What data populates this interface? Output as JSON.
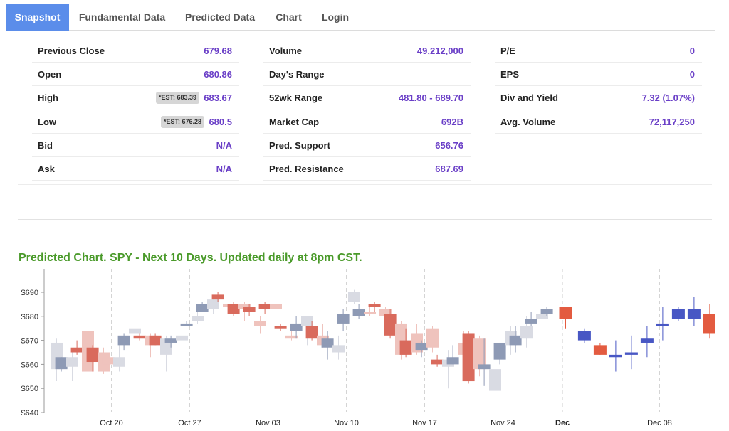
{
  "tabs": [
    {
      "label": "Snapshot",
      "active": true
    },
    {
      "label": "Fundamental Data",
      "active": false
    },
    {
      "label": "Predicted Data",
      "active": false
    },
    {
      "label": "Chart",
      "active": false
    },
    {
      "label": "Login",
      "active": false
    }
  ],
  "quote": {
    "previous_close": {
      "label": "Previous Close",
      "value": "679.68"
    },
    "open": {
      "label": "Open",
      "value": "680.86"
    },
    "high": {
      "label": "High",
      "value": "683.67",
      "est": "*EST: 683.39"
    },
    "low": {
      "label": "Low",
      "value": "680.5",
      "est": "*EST: 676.28"
    },
    "bid": {
      "label": "Bid",
      "value": "N/A"
    },
    "ask": {
      "label": "Ask",
      "value": "N/A"
    },
    "volume": {
      "label": "Volume",
      "value": "49,212,000"
    },
    "days_range": {
      "label": "Day's Range",
      "value": ""
    },
    "wk52_range": {
      "label": "52wk Range",
      "value": "481.80 - 689.70"
    },
    "market_cap": {
      "label": "Market Cap",
      "value": "692B"
    },
    "pred_support": {
      "label": "Pred. Support",
      "value": "656.76"
    },
    "pred_resistance": {
      "label": "Pred. Resistance",
      "value": "687.69"
    },
    "pe": {
      "label": "P/E",
      "value": "0"
    },
    "eps": {
      "label": "EPS",
      "value": "0"
    },
    "div_yield": {
      "label": "Div and Yield",
      "value": "7.32 (1.07%)"
    },
    "avg_volume": {
      "label": "Avg. Volume",
      "value": "72,117,250"
    }
  },
  "chart_title": "Predicted Chart. SPY - Next 10 Days. Updated daily at 8pm CST.",
  "colors": {
    "accent_tab": "#5b8dea",
    "value_text": "#6a3fc7",
    "chart_title": "#4a9a2a",
    "hist_up": "#8e9ab5",
    "hist_down": "#d96a5c",
    "ghost_up": "#d9dbe3",
    "ghost_down": "#efc3bd",
    "pred_up": "#4857c4",
    "pred_down": "#e35b40"
  },
  "chart_data": {
    "type": "candlestick",
    "title": "",
    "xlabel": "",
    "ylabel": "",
    "ylim": [
      640,
      700
    ],
    "yticks": [
      640,
      650,
      660,
      670,
      680,
      690
    ],
    "ytick_labels": [
      "$640",
      "$650",
      "$660",
      "$670",
      "$680",
      "$690"
    ],
    "x_ticks": [
      {
        "label": "Oct 20",
        "x": 4,
        "bold": false
      },
      {
        "label": "Oct 27",
        "x": 9,
        "bold": false
      },
      {
        "label": "Nov 03",
        "x": 14,
        "bold": false
      },
      {
        "label": "Nov 10",
        "x": 19,
        "bold": false
      },
      {
        "label": "Nov 17",
        "x": 24,
        "bold": false
      },
      {
        "label": "Nov 24",
        "x": 29,
        "bold": false
      },
      {
        "label": "Dec",
        "x": 32.8,
        "bold": true
      },
      {
        "label": "Dec 08",
        "x": 39,
        "bold": false
      }
    ],
    "candles": [
      {
        "x": 0.5,
        "o": 658,
        "h": 671,
        "l": 653,
        "c": 669,
        "kind": "ghost"
      },
      {
        "x": 0.8,
        "o": 658,
        "h": 663,
        "l": 657,
        "c": 663,
        "kind": "hist"
      },
      {
        "x": 1.5,
        "o": 659,
        "h": 666,
        "l": 653,
        "c": 663,
        "kind": "ghost"
      },
      {
        "x": 1.8,
        "o": 667,
        "h": 670,
        "l": 664,
        "c": 665,
        "kind": "hist"
      },
      {
        "x": 2.5,
        "o": 674,
        "h": 675,
        "l": 656,
        "c": 657,
        "kind": "ghost"
      },
      {
        "x": 2.8,
        "o": 667,
        "h": 668,
        "l": 657,
        "c": 661,
        "kind": "hist"
      },
      {
        "x": 3.5,
        "o": 665,
        "h": 667,
        "l": 656,
        "c": 657,
        "kind": "ghost"
      },
      {
        "x": 3.8,
        "o": 663,
        "h": 665,
        "l": 659,
        "c": 660,
        "kind": "ghost"
      },
      {
        "x": 4.5,
        "o": 659,
        "h": 670,
        "l": 657,
        "c": 663,
        "kind": "ghost"
      },
      {
        "x": 4.8,
        "o": 668,
        "h": 673,
        "l": 666,
        "c": 672,
        "kind": "hist"
      },
      {
        "x": 5.5,
        "o": 673,
        "h": 676,
        "l": 672,
        "c": 675,
        "kind": "ghost"
      },
      {
        "x": 5.8,
        "o": 672,
        "h": 673,
        "l": 670,
        "c": 671,
        "kind": "hist"
      },
      {
        "x": 6.5,
        "o": 672,
        "h": 673,
        "l": 663,
        "c": 668,
        "kind": "ghost"
      },
      {
        "x": 6.8,
        "o": 672,
        "h": 673,
        "l": 668,
        "c": 668,
        "kind": "hist"
      },
      {
        "x": 7.5,
        "o": 664,
        "h": 672,
        "l": 657,
        "c": 671,
        "kind": "ghost"
      },
      {
        "x": 7.8,
        "o": 669,
        "h": 672,
        "l": 667,
        "c": 671,
        "kind": "hist"
      },
      {
        "x": 8.5,
        "o": 670,
        "h": 674,
        "l": 667,
        "c": 672,
        "kind": "ghost"
      },
      {
        "x": 8.8,
        "o": 676,
        "h": 678,
        "l": 676,
        "c": 677,
        "kind": "hist"
      },
      {
        "x": 9.5,
        "o": 678,
        "h": 683,
        "l": 677,
        "c": 680,
        "kind": "ghost"
      },
      {
        "x": 9.8,
        "o": 682,
        "h": 686,
        "l": 682,
        "c": 685,
        "kind": "hist"
      },
      {
        "x": 10.5,
        "o": 683,
        "h": 688,
        "l": 681,
        "c": 687,
        "kind": "ghost"
      },
      {
        "x": 10.8,
        "o": 689,
        "h": 690,
        "l": 686,
        "c": 687,
        "kind": "hist"
      },
      {
        "x": 11.5,
        "o": 685,
        "h": 687,
        "l": 683,
        "c": 684,
        "kind": "ghost"
      },
      {
        "x": 11.8,
        "o": 685,
        "h": 686,
        "l": 680,
        "c": 681,
        "kind": "hist"
      },
      {
        "x": 12.5,
        "o": 685,
        "h": 686,
        "l": 678,
        "c": 683,
        "kind": "ghost"
      },
      {
        "x": 12.8,
        "o": 684,
        "h": 685,
        "l": 680,
        "c": 682,
        "kind": "hist"
      },
      {
        "x": 13.5,
        "o": 678,
        "h": 680,
        "l": 673,
        "c": 676,
        "kind": "ghost"
      },
      {
        "x": 13.8,
        "o": 685,
        "h": 686,
        "l": 681,
        "c": 683,
        "kind": "hist"
      },
      {
        "x": 14.5,
        "o": 685,
        "h": 687,
        "l": 680,
        "c": 683,
        "kind": "ghost"
      },
      {
        "x": 14.8,
        "o": 676,
        "h": 677,
        "l": 674,
        "c": 675,
        "kind": "hist"
      },
      {
        "x": 15.5,
        "o": 672,
        "h": 674,
        "l": 670,
        "c": 671,
        "kind": "ghost"
      },
      {
        "x": 15.8,
        "o": 674,
        "h": 680,
        "l": 671,
        "c": 677,
        "kind": "hist"
      },
      {
        "x": 16.5,
        "o": 676,
        "h": 680,
        "l": 668,
        "c": 680,
        "kind": "ghost"
      },
      {
        "x": 16.8,
        "o": 676,
        "h": 678,
        "l": 670,
        "c": 671,
        "kind": "hist"
      },
      {
        "x": 17.5,
        "o": 672,
        "h": 677,
        "l": 667,
        "c": 668,
        "kind": "ghost"
      },
      {
        "x": 17.8,
        "o": 667,
        "h": 674,
        "l": 662,
        "c": 671,
        "kind": "hist"
      },
      {
        "x": 18.5,
        "o": 665,
        "h": 672,
        "l": 662,
        "c": 668,
        "kind": "ghost"
      },
      {
        "x": 18.8,
        "o": 677,
        "h": 683,
        "l": 674,
        "c": 681,
        "kind": "hist"
      },
      {
        "x": 19.5,
        "o": 686,
        "h": 691,
        "l": 685,
        "c": 690,
        "kind": "ghost"
      },
      {
        "x": 19.8,
        "o": 680,
        "h": 685,
        "l": 679,
        "c": 683,
        "kind": "hist"
      },
      {
        "x": 20.5,
        "o": 682,
        "h": 684,
        "l": 680,
        "c": 681,
        "kind": "ghost"
      },
      {
        "x": 20.8,
        "o": 685,
        "h": 686,
        "l": 682,
        "c": 684,
        "kind": "hist"
      },
      {
        "x": 21.5,
        "o": 683,
        "h": 684,
        "l": 674,
        "c": 680,
        "kind": "ghost"
      },
      {
        "x": 21.8,
        "o": 681,
        "h": 683,
        "l": 671,
        "c": 672,
        "kind": "hist"
      },
      {
        "x": 22.5,
        "o": 677,
        "h": 678,
        "l": 662,
        "c": 664,
        "kind": "ghost"
      },
      {
        "x": 22.8,
        "o": 670,
        "h": 675,
        "l": 663,
        "c": 664,
        "kind": "hist"
      },
      {
        "x": 23.5,
        "o": 673,
        "h": 677,
        "l": 664,
        "c": 665,
        "kind": "ghost"
      },
      {
        "x": 23.8,
        "o": 666,
        "h": 670,
        "l": 663,
        "c": 669,
        "kind": "hist"
      },
      {
        "x": 24.5,
        "o": 675,
        "h": 676,
        "l": 665,
        "c": 667,
        "kind": "ghost"
      },
      {
        "x": 24.8,
        "o": 662,
        "h": 664,
        "l": 659,
        "c": 660,
        "kind": "hist"
      },
      {
        "x": 25.5,
        "o": 659,
        "h": 666,
        "l": 650,
        "c": 662,
        "kind": "ghost"
      },
      {
        "x": 25.8,
        "o": 660,
        "h": 668,
        "l": 660,
        "c": 663,
        "kind": "hist"
      },
      {
        "x": 26.5,
        "o": 669,
        "h": 674,
        "l": 656,
        "c": 664,
        "kind": "ghost"
      },
      {
        "x": 26.8,
        "o": 673,
        "h": 674,
        "l": 652,
        "c": 653,
        "kind": "hist"
      },
      {
        "x": 27.5,
        "o": 671,
        "h": 672,
        "l": 655,
        "c": 658,
        "kind": "ghost"
      },
      {
        "x": 27.8,
        "o": 658,
        "h": 671,
        "l": 651,
        "c": 660,
        "kind": "hist"
      },
      {
        "x": 28.5,
        "o": 649,
        "h": 660,
        "l": 648,
        "c": 658,
        "kind": "ghost"
      },
      {
        "x": 28.8,
        "o": 662,
        "h": 669,
        "l": 660,
        "c": 669,
        "kind": "hist"
      },
      {
        "x": 29.5,
        "o": 668,
        "h": 676,
        "l": 664,
        "c": 674,
        "kind": "ghost"
      },
      {
        "x": 29.8,
        "o": 668,
        "h": 676,
        "l": 665,
        "c": 672,
        "kind": "hist"
      },
      {
        "x": 30.5,
        "o": 671,
        "h": 680,
        "l": 667,
        "c": 676,
        "kind": "ghost"
      },
      {
        "x": 30.8,
        "o": 677,
        "h": 682,
        "l": 676,
        "c": 679,
        "kind": "hist"
      },
      {
        "x": 31.5,
        "o": 679,
        "h": 684,
        "l": 678,
        "c": 681,
        "kind": "ghost"
      },
      {
        "x": 31.8,
        "o": 681,
        "h": 684,
        "l": 680,
        "c": 683,
        "kind": "hist"
      },
      {
        "x": 33,
        "o": 684,
        "h": 684,
        "l": 675,
        "c": 679,
        "kind": "pred"
      },
      {
        "x": 34.2,
        "o": 670,
        "h": 675,
        "l": 669,
        "c": 674,
        "kind": "pred"
      },
      {
        "x": 35.2,
        "o": 668,
        "h": 669,
        "l": 664,
        "c": 664,
        "kind": "pred"
      },
      {
        "x": 36.2,
        "o": 663,
        "h": 670,
        "l": 657,
        "c": 664,
        "kind": "pred"
      },
      {
        "x": 37.2,
        "o": 664,
        "h": 672,
        "l": 658,
        "c": 665,
        "kind": "pred"
      },
      {
        "x": 38.2,
        "o": 669,
        "h": 676,
        "l": 663,
        "c": 671,
        "kind": "pred"
      },
      {
        "x": 39.2,
        "o": 676,
        "h": 684,
        "l": 670,
        "c": 677,
        "kind": "pred"
      },
      {
        "x": 40.2,
        "o": 679,
        "h": 684,
        "l": 678,
        "c": 683,
        "kind": "pred"
      },
      {
        "x": 41.2,
        "o": 679,
        "h": 688,
        "l": 676,
        "c": 683,
        "kind": "pred"
      },
      {
        "x": 42.2,
        "o": 681,
        "h": 685,
        "l": 671,
        "c": 673,
        "kind": "pred"
      }
    ]
  }
}
